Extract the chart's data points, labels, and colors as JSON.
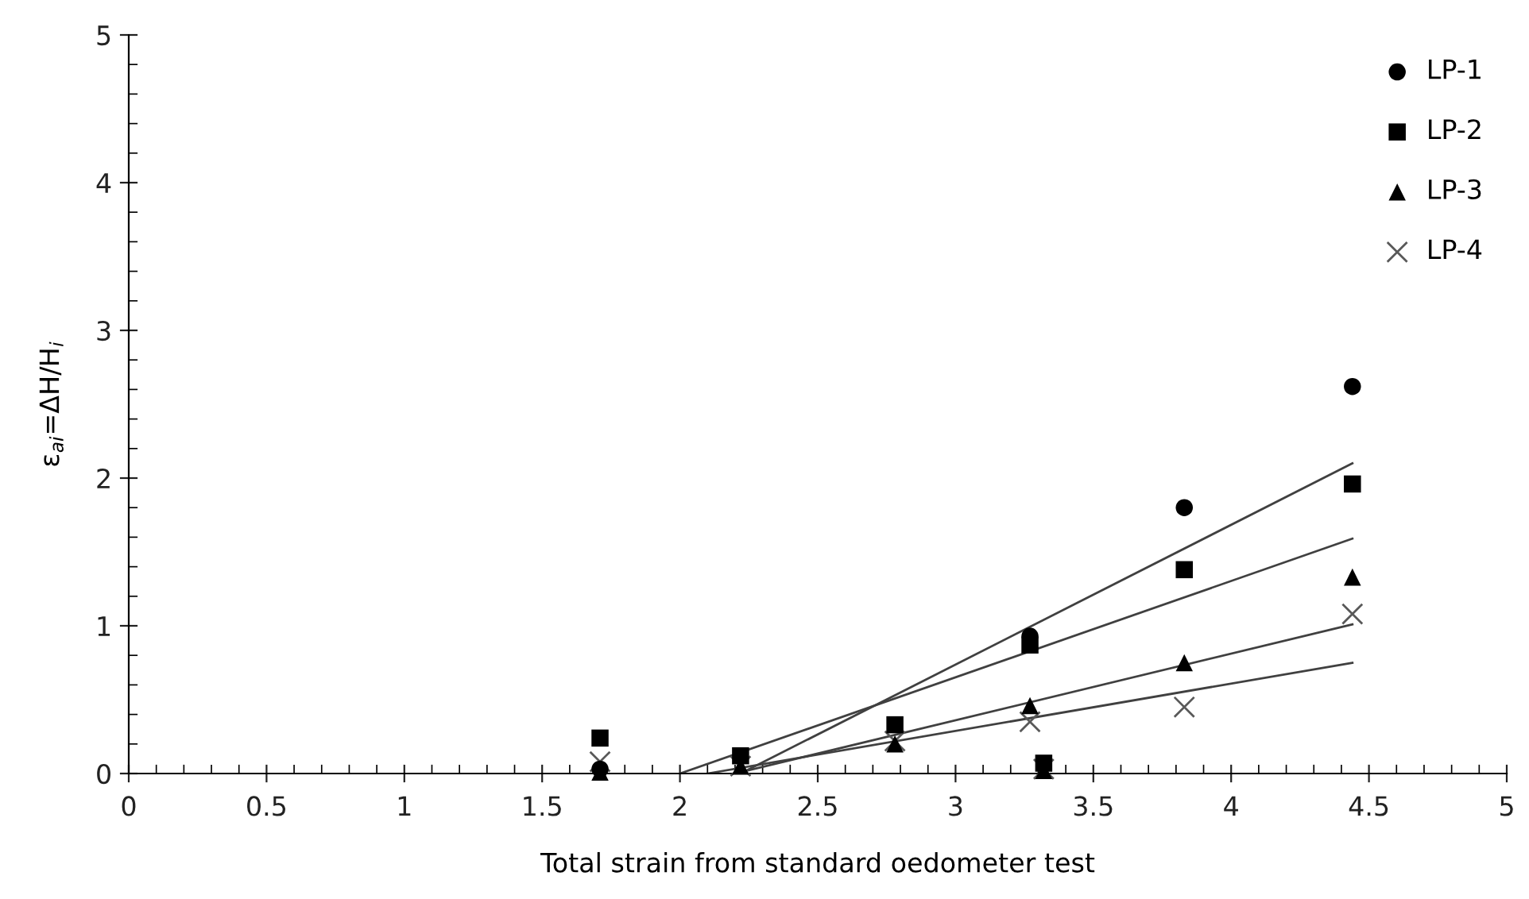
{
  "chart_data": {
    "type": "scatter",
    "xlabel": "Total strain from standard oedometer test",
    "ylabel": "ε$_{ai}$=ΔH/H$_{i}$",
    "xlim": [
      0,
      5
    ],
    "xticks": [
      0,
      0.5,
      1,
      1.5,
      2,
      2.5,
      3,
      3.5,
      4,
      4.5,
      5
    ],
    "ylim": [
      0,
      5
    ],
    "yticks": [
      0,
      1,
      2,
      3,
      4,
      5
    ],
    "grid": false,
    "legend": "top right",
    "series": [
      {
        "name": "LP-1",
        "color": "#000000",
        "marker": "circle",
        "x": [
          1.71,
          2.22,
          2.78,
          3.27,
          3.32,
          3.83,
          4.44
        ],
        "values": [
          0.03,
          null,
          null,
          0.93,
          null,
          1.8,
          2.62
        ]
      },
      {
        "name": "LP-2",
        "color": "#000000",
        "marker": "square",
        "x": [
          1.71,
          2.22,
          2.78,
          3.27,
          3.32,
          3.83,
          4.44
        ],
        "values": [
          0.24,
          0.12,
          0.33,
          0.87,
          0.07,
          1.38,
          1.96
        ]
      },
      {
        "name": "LP-3",
        "color": "#000000",
        "marker": "triangle",
        "x": [
          1.71,
          2.22,
          2.78,
          3.27,
          3.32,
          3.83,
          4.44
        ],
        "values": [
          0.01,
          0.05,
          0.2,
          0.46,
          0.02,
          0.75,
          1.33
        ]
      },
      {
        "name": "LP-4",
        "color": "#595959",
        "marker": "cross",
        "x": [
          1.71,
          2.22,
          2.78,
          3.27,
          3.32,
          3.83,
          4.44
        ],
        "values": [
          0.08,
          0.05,
          0.22,
          0.35,
          0.03,
          0.45,
          1.08
        ]
      },
      {
        "type": "line",
        "color": "#404040",
        "marker": "none",
        "x": [
          2.22,
          4.44
        ],
        "values": [
          0,
          2.1
        ]
      },
      {
        "type": "line",
        "color": "#404040",
        "marker": "none",
        "x": [
          2.0,
          4.44
        ],
        "values": [
          0,
          1.59
        ]
      },
      {
        "type": "line",
        "color": "#404040",
        "marker": "none",
        "x": [
          2.2,
          4.44
        ],
        "values": [
          0,
          1.01
        ]
      },
      {
        "type": "line",
        "color": "#404040",
        "marker": "none",
        "x": [
          2.1,
          4.44
        ],
        "values": [
          0,
          0.75
        ]
      }
    ]
  }
}
